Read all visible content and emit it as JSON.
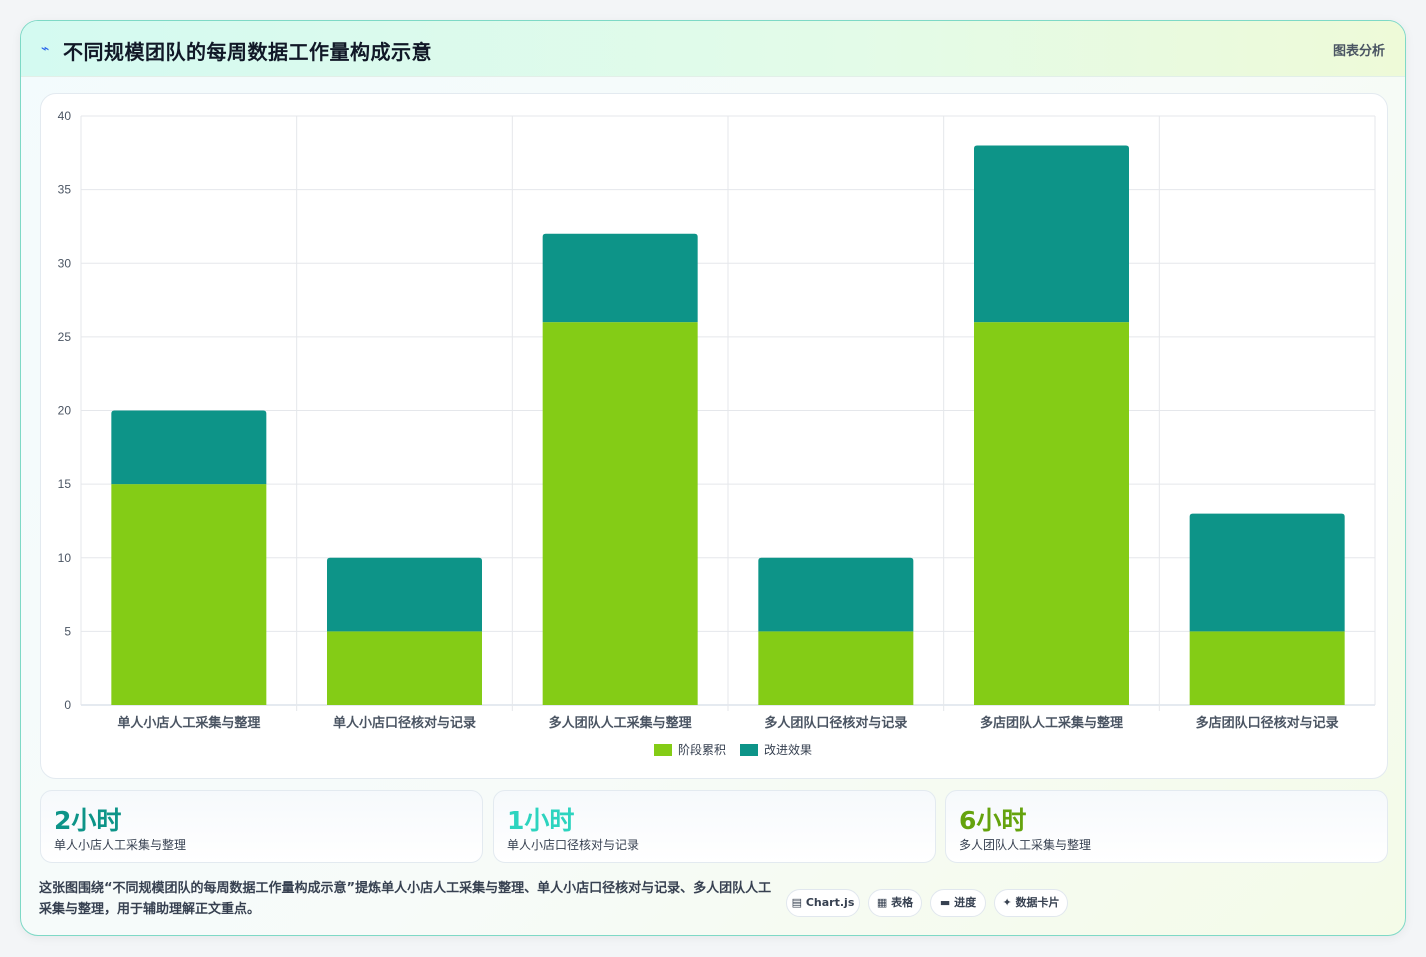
{
  "header": {
    "icon": "sparkline-icon",
    "title": "不同规模团队的每周数据工作量构成示意",
    "right_label": "图表分析"
  },
  "chart_data": {
    "type": "bar",
    "stacked": true,
    "categories": [
      "单人小店人工采集与整理",
      "单人小店口径核对与记录",
      "多人团队人工采集与整理",
      "多人团队口径核对与记录",
      "多店团队人工采集与整理",
      "多店团队口径核对与记录"
    ],
    "series": [
      {
        "name": "阶段累积",
        "color": "#84cc16",
        "values": [
          15,
          5,
          26,
          5,
          26,
          5
        ]
      },
      {
        "name": "改进效果",
        "color": "#0d9488",
        "values": [
          5,
          5,
          6,
          5,
          12,
          8
        ]
      }
    ],
    "ylim": [
      0,
      40
    ],
    "yticks": [
      0,
      5,
      10,
      15,
      20,
      25,
      30,
      35,
      40
    ],
    "grid": true,
    "legend": "bottom"
  },
  "kpis": [
    {
      "value": "2小时",
      "label": "单人小店人工采集与整理",
      "color": "#0d9488"
    },
    {
      "value": "1小时",
      "label": "单人小店口径核对与记录",
      "color": "#2dd4bf"
    },
    {
      "value": "6小时",
      "label": "多人团队人工采集与整理",
      "color": "#65a30d"
    }
  ],
  "description": "这张图围绕“不同规模团队的每周数据工作量构成示意”提炼单人小店人工采集与整理、单人小店口径核对与记录、多人团队人工采集与整理，用于辅助理解正文重点。",
  "tags": [
    {
      "icon": "chart-icon",
      "label": "Chart.js"
    },
    {
      "icon": "table-icon",
      "label": "表格"
    },
    {
      "icon": "progress-icon",
      "label": "进度"
    },
    {
      "icon": "sparkle-icon",
      "label": "数据卡片"
    }
  ]
}
